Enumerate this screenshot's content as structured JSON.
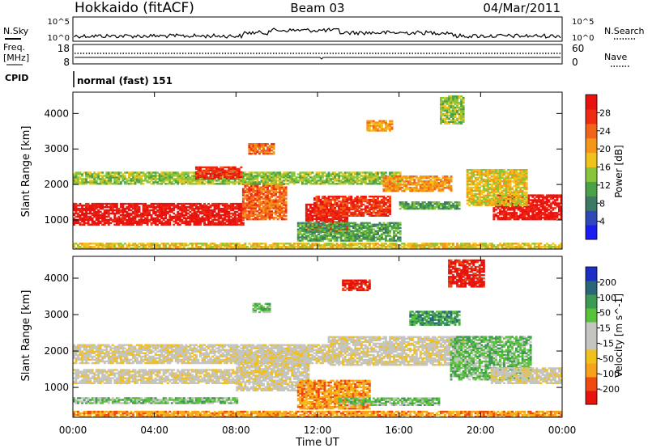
{
  "header": {
    "station": "Hokkaido (fitACF)",
    "beam": "Beam 03",
    "date": "04/Mar/2011"
  },
  "strips": {
    "nsky_label": "N.Sky",
    "nsky_ticks": [
      "10^5",
      "10^0"
    ],
    "nsearch_label": "N.Search",
    "nsearch_ticks": [
      "10^5",
      "10^0"
    ],
    "freq_label_1": "Freq.",
    "freq_label_2": "[MHz]",
    "freq_ticks": [
      "18",
      "8"
    ],
    "nave_label": "Nave",
    "nave_ticks": [
      "60",
      "0"
    ],
    "cpid_label": "CPID",
    "cpid_text": "normal (fast) 151"
  },
  "chart_data": [
    {
      "type": "heatmap",
      "name": "power",
      "xlabel": "",
      "ylabel": "Slant Range [km]",
      "x_ticks": [
        "00:00",
        "04:00",
        "08:00",
        "12:00",
        "16:00",
        "20:00",
        "00:00"
      ],
      "y_ticks": [
        "1000",
        "2000",
        "3000",
        "4000"
      ],
      "xlim": [
        0,
        24
      ],
      "ylim": [
        180,
        4600
      ],
      "colorbar_label": "Power [dB]",
      "colorbar_ticks": [
        "28",
        "24",
        "20",
        "16",
        "12",
        "8",
        "4"
      ],
      "colors": [
        "#1b1bf2",
        "#2f48b8",
        "#3c7a66",
        "#49a148",
        "#88c53a",
        "#f1c21b",
        "#f49618",
        "#f26419",
        "#ee2b13",
        "#e8120f"
      ],
      "regions": [
        {
          "t0": 0.0,
          "t1": 8.3,
          "r0": 850,
          "r1": 1450,
          "level": 9
        },
        {
          "t0": 8.3,
          "t1": 10.4,
          "r0": 1000,
          "r1": 2000,
          "level": 7
        },
        {
          "t0": 11.4,
          "t1": 13.4,
          "r0": 650,
          "r1": 1450,
          "level": 9
        },
        {
          "t0": 11.8,
          "t1": 15.5,
          "r0": 1100,
          "r1": 1650,
          "level": 8
        },
        {
          "t0": 0.0,
          "t1": 16.0,
          "r0": 2000,
          "r1": 2350,
          "level": 4
        },
        {
          "t0": 6.0,
          "t1": 8.2,
          "r0": 2150,
          "r1": 2500,
          "level": 8
        },
        {
          "t0": 15.2,
          "t1": 18.6,
          "r0": 1800,
          "r1": 2250,
          "level": 6
        },
        {
          "t0": 20.6,
          "t1": 24.0,
          "r0": 1000,
          "r1": 1700,
          "level": 9
        },
        {
          "t0": 19.3,
          "t1": 22.3,
          "r0": 1400,
          "r1": 2400,
          "level": 5
        },
        {
          "t0": 8.6,
          "t1": 9.8,
          "r0": 2850,
          "r1": 3150,
          "level": 7
        },
        {
          "t0": 18.0,
          "t1": 19.2,
          "r0": 3700,
          "r1": 4500,
          "level": 4
        },
        {
          "t0": 14.4,
          "t1": 15.6,
          "r0": 3500,
          "r1": 3800,
          "level": 6
        },
        {
          "t0": 11.0,
          "t1": 16.0,
          "r0": 400,
          "r1": 900,
          "level": 3
        },
        {
          "t0": 16.0,
          "t1": 19.0,
          "r0": 1300,
          "r1": 1500,
          "level": 3
        },
        {
          "t0": 0.0,
          "t1": 24.0,
          "r0": 180,
          "r1": 330,
          "level": 5
        }
      ]
    },
    {
      "type": "heatmap",
      "name": "velocity",
      "xlabel": "Time UT",
      "ylabel": "Slant Range [km]",
      "x_ticks": [
        "00:00",
        "04:00",
        "08:00",
        "12:00",
        "16:00",
        "20:00",
        "00:00"
      ],
      "y_ticks": [
        "1000",
        "2000",
        "3000",
        "4000"
      ],
      "xlim": [
        0,
        24
      ],
      "ylim": [
        180,
        4600
      ],
      "colorbar_label": "Velocity [m s^-1]",
      "colorbar_ticks": [
        "200",
        "100",
        "50",
        "15",
        "-15",
        "-50",
        "-100",
        "-200"
      ],
      "colors": [
        "#e8120f",
        "#f04a12",
        "#f6a21b",
        "#f2c01c",
        "#c4c4c0",
        "#c4c4c0",
        "#58c23a",
        "#3c9a52",
        "#2b6678",
        "#1b2fc7"
      ],
      "regions": [
        {
          "t0": 0.0,
          "t1": 8.0,
          "r0": 1100,
          "r1": 1500,
          "level": 4
        },
        {
          "t0": 0.0,
          "t1": 12.5,
          "r0": 1650,
          "r1": 2150,
          "level": 4
        },
        {
          "t0": 8.0,
          "t1": 11.5,
          "r0": 900,
          "r1": 2000,
          "level": 4
        },
        {
          "t0": 11.0,
          "t1": 14.5,
          "r0": 400,
          "r1": 1200,
          "level": 2
        },
        {
          "t0": 12.5,
          "t1": 19.2,
          "r0": 1600,
          "r1": 2400,
          "level": 4
        },
        {
          "t0": 18.5,
          "t1": 22.5,
          "r0": 1200,
          "r1": 2400,
          "level": 6
        },
        {
          "t0": 20.5,
          "t1": 24.0,
          "r0": 1100,
          "r1": 1550,
          "level": 4
        },
        {
          "t0": 18.4,
          "t1": 20.2,
          "r0": 3750,
          "r1": 4500,
          "level": 0
        },
        {
          "t0": 13.2,
          "t1": 14.5,
          "r0": 3650,
          "r1": 3950,
          "level": 0
        },
        {
          "t0": 8.8,
          "t1": 9.6,
          "r0": 3050,
          "r1": 3300,
          "level": 6
        },
        {
          "t0": 0.0,
          "t1": 8.0,
          "r0": 550,
          "r1": 700,
          "level": 6
        },
        {
          "t0": 13.0,
          "t1": 18.0,
          "r0": 500,
          "r1": 700,
          "level": 6
        },
        {
          "t0": 0.0,
          "t1": 24.0,
          "r0": 180,
          "r1": 330,
          "level": 2
        },
        {
          "t0": 16.5,
          "t1": 19.0,
          "r0": 2700,
          "r1": 3100,
          "level": 7
        }
      ]
    }
  ]
}
